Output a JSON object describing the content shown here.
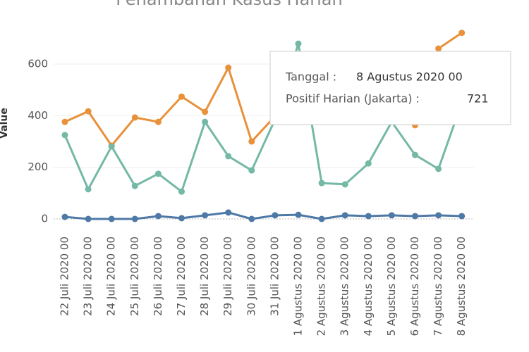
{
  "chart_data": {
    "type": "line",
    "title": "Penambahan Kasus Harian",
    "y_label": "Value",
    "categories": [
      "22 Juli 2020 00",
      "23 Juli 2020 00",
      "24 Juli 2020 00",
      "25 Juli 2020 00",
      "26 Juli 2020 00",
      "27 Juli 2020 00",
      "28 Juli 2020 00",
      "29 Juli 2020 00",
      "30 Juli 2020 00",
      "31 Juli 2020 00",
      "1 Agustus 2020 00",
      "2 Agustus 2020 00",
      "3 Agustus 2020 00",
      "4 Agustus 2020 00",
      "5 Agustus 2020 00",
      "6 Agustus 2020 00",
      "7 Agustus 2020 00",
      "8 Agustus 2020 00"
    ],
    "series": [
      {
        "name": "Positif Harian (Jakarta)",
        "color": "#e8913a",
        "values": [
          376,
          417,
          284,
          393,
          376,
          474,
          415,
          586,
          300,
          398,
          376,
          380,
          450,
          420,
          470,
          363,
          660,
          721
        ]
      },
      {
        "color": "#74b8a6",
        "values": [
          325,
          115,
          281,
          128,
          175,
          106,
          376,
          243,
          188,
          385,
          679,
          139,
          134,
          215,
          376,
          248,
          194,
          450
        ]
      },
      {
        "color": "#4e79a7",
        "values": [
          8,
          0,
          0,
          0,
          11,
          3,
          14,
          25,
          0,
          14,
          16,
          0,
          14,
          11,
          14,
          11,
          14,
          11
        ]
      }
    ],
    "ylim": [
      -30,
      650
    ],
    "yticks": [
      0,
      200,
      400,
      600
    ],
    "grid": true,
    "tooltip": {
      "labels": [
        "Tanggal :",
        "Positif Harian (Jakarta) :"
      ]
    }
  }
}
